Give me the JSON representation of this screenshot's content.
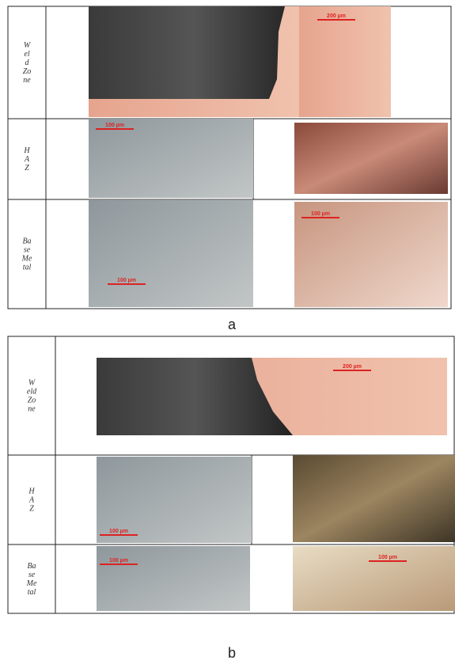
{
  "figures": [
    {
      "caption": "a",
      "rows": [
        {
          "label": [
            "W",
            "el",
            "d",
            "Zo",
            "ne"
          ],
          "scale_labels": [
            "200 µm"
          ]
        },
        {
          "label": [
            "H",
            "A",
            "Z"
          ],
          "scale_labels": [
            "100 µm"
          ]
        },
        {
          "label": [
            "Ba",
            "se",
            "Me",
            "tal"
          ],
          "scale_labels": [
            "100 µm",
            "100 µm"
          ]
        }
      ]
    },
    {
      "caption": "b",
      "rows": [
        {
          "label": [
            "W",
            "eld",
            "Zo",
            "ne"
          ],
          "scale_labels": [
            "200 µm"
          ]
        },
        {
          "label": [
            "H",
            "A",
            "Z"
          ],
          "scale_labels": [
            "100 µm"
          ]
        },
        {
          "label": [
            "Ba",
            "se",
            "Me",
            "tal"
          ],
          "scale_labels": [
            "100 µm",
            "100 µm"
          ]
        }
      ]
    }
  ]
}
